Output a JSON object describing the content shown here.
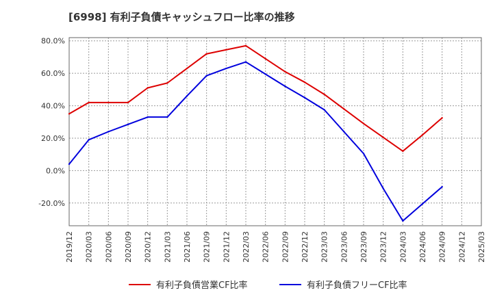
{
  "chart_data": {
    "type": "line",
    "title": "[6998]  有利子負債キャッシュフロー比率の推移",
    "xlabel": "",
    "ylabel": "",
    "x": [
      "2019/12",
      "2020/03",
      "2020/06",
      "2020/09",
      "2020/12",
      "2021/03",
      "2021/06",
      "2021/09",
      "2021/12",
      "2022/03",
      "2022/06",
      "2022/09",
      "2022/12",
      "2023/03",
      "2023/06",
      "2023/09",
      "2023/12",
      "2024/03",
      "2024/06",
      "2024/09",
      "2024/12",
      "2025/03"
    ],
    "ylim": [
      -34,
      82
    ],
    "yticks": [
      80,
      60,
      40,
      20,
      0,
      -20
    ],
    "ytick_labels": [
      "80.0%",
      "60.0%",
      "40.0%",
      "20.0%",
      "0.0%",
      "-20.0%"
    ],
    "grid": true,
    "legend_position": "bottom",
    "series": [
      {
        "name": "有利子負債営業CF比率",
        "color": "#dd0000",
        "values": [
          35,
          42,
          42,
          42,
          51,
          54,
          63,
          72,
          74.5,
          77,
          69,
          61,
          54.5,
          47,
          38,
          29,
          20.5,
          12,
          22,
          32.5,
          null,
          null
        ]
      },
      {
        "name": "有利子負債フリーCF比率",
        "color": "#0000dd",
        "values": [
          4,
          19,
          24,
          28.5,
          33,
          33,
          46,
          58.5,
          63,
          67,
          59.5,
          52,
          45,
          37.5,
          24,
          10.5,
          -11,
          -31,
          -20.5,
          -10,
          null,
          null
        ]
      }
    ]
  }
}
